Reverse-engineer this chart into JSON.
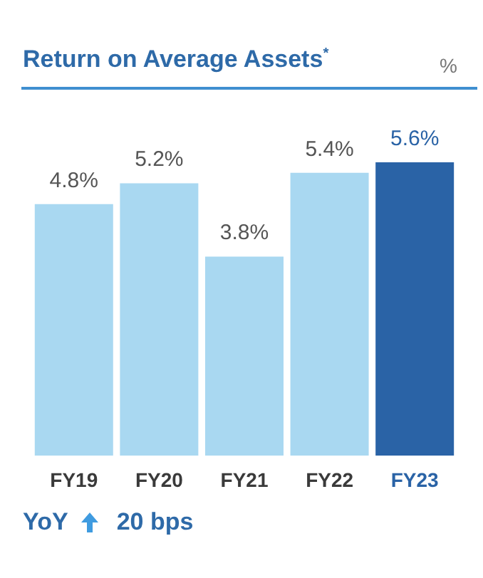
{
  "chart_data": {
    "type": "bar",
    "title": "Return on Average Assets$^{*}$",
    "ylabel": "%",
    "categories": [
      "FY19",
      "FY20",
      "FY21",
      "FY22",
      "FY23"
    ],
    "values": [
      4.8,
      5.2,
      3.8,
      5.4,
      5.6
    ],
    "colors": [
      "#a9d8f1",
      "#a9d8f1",
      "#a9d8f1",
      "#a9d8f1",
      "#2a63a6"
    ],
    "value_labels": [
      "4.8%",
      "5.2%",
      "3.8%",
      "5.4%",
      "5.6%"
    ],
    "ylim": [
      0,
      5.6
    ],
    "annotations": [
      "YoY",
      "20 bps"
    ]
  }
}
